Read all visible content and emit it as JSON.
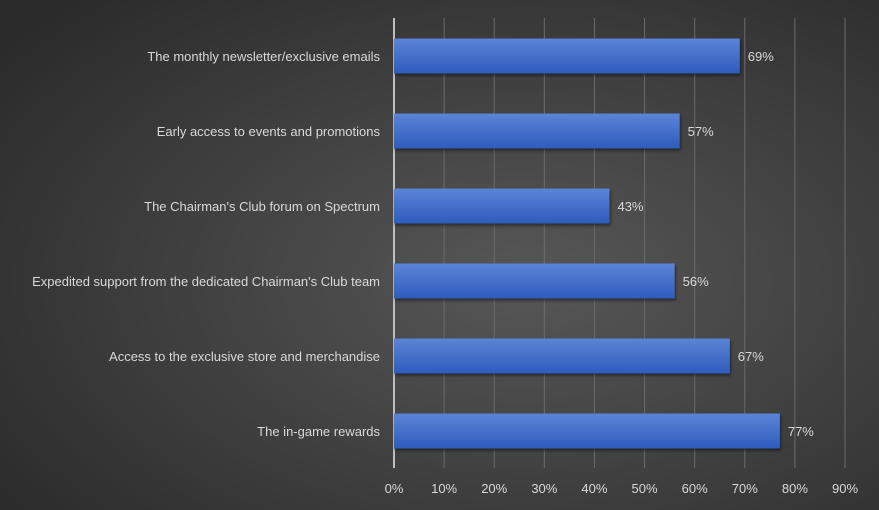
{
  "chart_data": {
    "type": "bar",
    "orientation": "horizontal",
    "title": "",
    "xlabel": "",
    "ylabel": "",
    "categories": [
      "The monthly newsletter/exclusive emails",
      "Early access to events and promotions",
      "The Chairman's Club forum on Spectrum",
      "Expedited support from the dedicated Chairman's Club team",
      "Access to the exclusive store and merchandise",
      "The in-game rewards"
    ],
    "values": [
      69,
      57,
      43,
      56,
      67,
      77
    ],
    "data_labels": [
      "69%",
      "57%",
      "43%",
      "56%",
      "67%",
      "77%"
    ],
    "xlim": [
      0,
      90
    ],
    "xticks": [
      0,
      10,
      20,
      30,
      40,
      50,
      60,
      70,
      80,
      90
    ],
    "xtick_labels": [
      "0%",
      "10%",
      "20%",
      "30%",
      "40%",
      "50%",
      "60%",
      "70%",
      "80%",
      "90%"
    ],
    "grid": true,
    "legend": "none",
    "colors": {
      "bar_top": "#5b84d6",
      "bar_bottom": "#2e5cbd",
      "grid": "#6b6b6b",
      "axis": "#bfbfbf"
    }
  }
}
